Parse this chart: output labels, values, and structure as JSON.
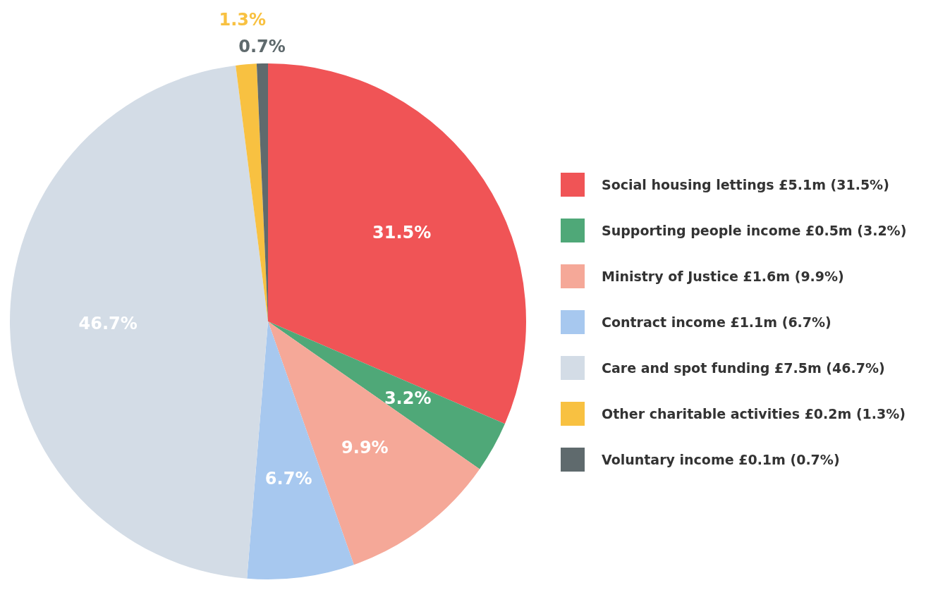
{
  "chart_data": {
    "type": "pie",
    "categories": [
      "Social housing lettings £5.1m (31.5%)",
      "Supporting people income £0.5m (3.2%)",
      "Ministry of Justice £1.6m (9.9%)",
      "Contract income £1.1m (6.7%)",
      "Care and spot funding £7.5m (46.7%)",
      "Other charitable activities £0.2m (1.3%)",
      "Voluntary income £0.1m (0.7%)"
    ],
    "values": [
      31.5,
      3.2,
      9.9,
      6.7,
      46.7,
      1.3,
      0.7
    ],
    "value_labels": [
      "31.5%",
      "3.2%",
      "9.9%",
      "6.7%",
      "46.7%",
      "1.3%",
      "0.7%"
    ],
    "colors": [
      "#f05456",
      "#4fa878",
      "#f5a898",
      "#a7c8ef",
      "#d3dce6",
      "#f8c141",
      "#5f6a6d"
    ],
    "legend": "right"
  }
}
